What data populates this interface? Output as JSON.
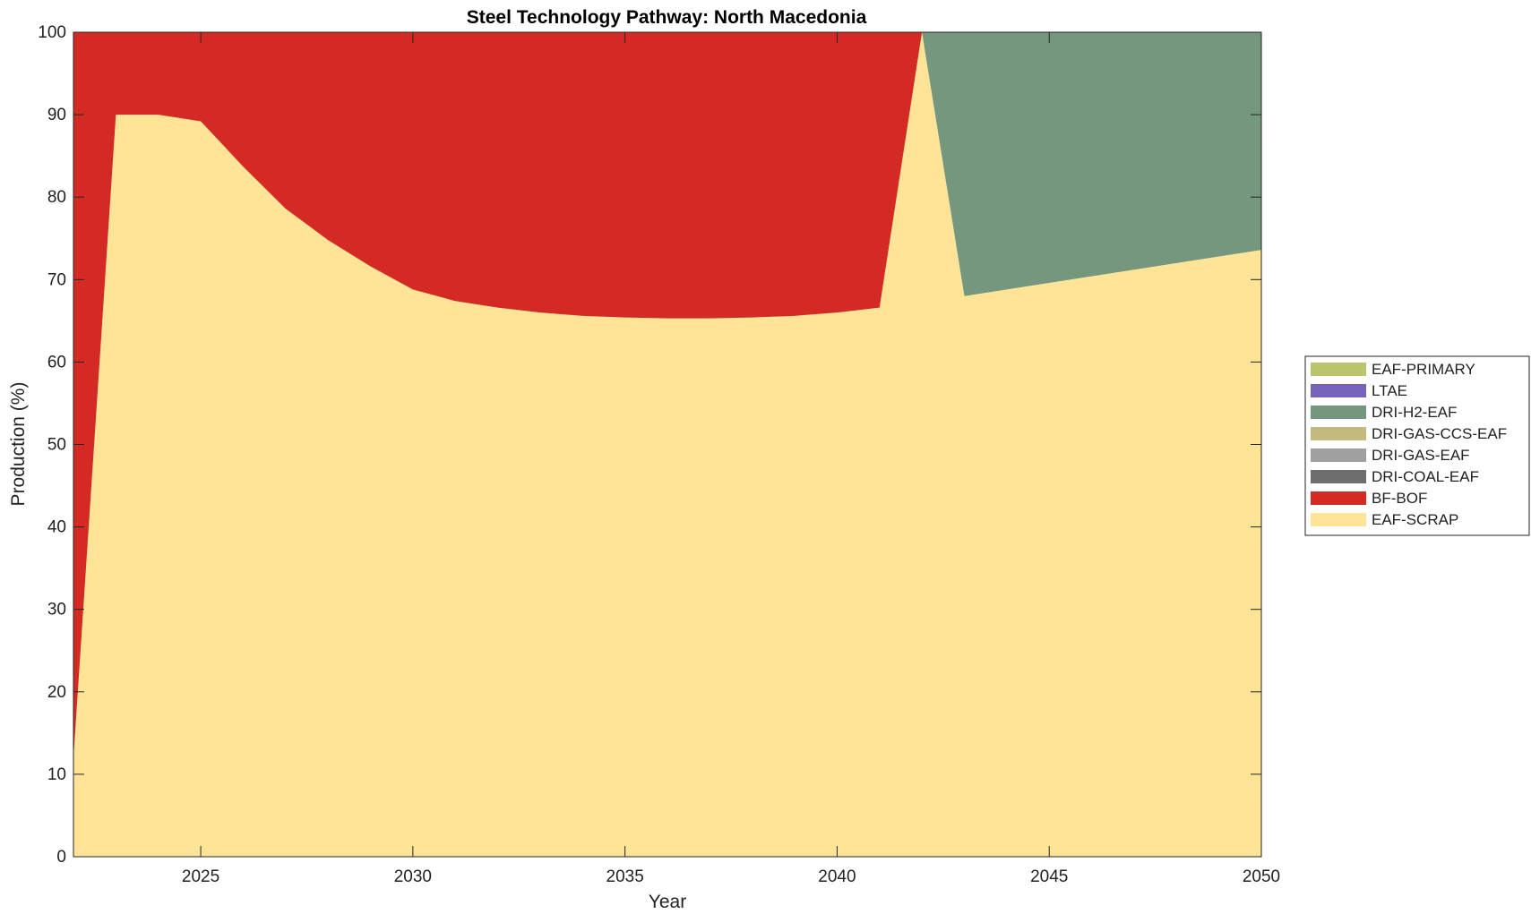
{
  "chart_data": {
    "type": "area",
    "stacked": true,
    "title": "Steel Technology Pathway: North Macedonia",
    "xlabel": "Year",
    "ylabel": "Production (%)",
    "xlim": [
      2022,
      2050
    ],
    "ylim": [
      0,
      100
    ],
    "xticks": [
      2025,
      2030,
      2035,
      2040,
      2045,
      2050
    ],
    "yticks": [
      0,
      10,
      20,
      30,
      40,
      50,
      60,
      70,
      80,
      90,
      100
    ],
    "grid": false,
    "legend_position": "right",
    "x": [
      2022,
      2023,
      2024,
      2025,
      2026,
      2027,
      2028,
      2029,
      2030,
      2031,
      2032,
      2033,
      2034,
      2035,
      2036,
      2037,
      2038,
      2039,
      2040,
      2041,
      2042,
      2043,
      2044,
      2045,
      2046,
      2047,
      2048,
      2049,
      2050
    ],
    "series": [
      {
        "name": "EAF-SCRAP",
        "color": "#FEE496",
        "values": [
          12,
          90,
          90,
          89.2,
          83.7,
          78.6,
          74.8,
          71.6,
          68.8,
          67.4,
          66.6,
          66.0,
          65.6,
          65.4,
          65.3,
          65.3,
          65.4,
          65.6,
          66.0,
          66.6,
          100,
          68.0,
          68.8,
          69.6,
          70.4,
          71.2,
          72.0,
          72.8,
          73.6
        ]
      },
      {
        "name": "BF-BOF",
        "color": "#D42A24",
        "values": [
          88,
          10,
          10,
          10.8,
          16.3,
          21.4,
          25.2,
          28.4,
          31.2,
          32.6,
          33.4,
          34.0,
          34.4,
          34.6,
          34.7,
          34.7,
          34.6,
          34.4,
          34.0,
          33.4,
          0,
          0,
          0,
          0,
          0,
          0,
          0,
          0,
          0
        ]
      },
      {
        "name": "DRI-COAL-EAF",
        "color": "#6E6E6E",
        "values": [
          0,
          0,
          0,
          0,
          0,
          0,
          0,
          0,
          0,
          0,
          0,
          0,
          0,
          0,
          0,
          0,
          0,
          0,
          0,
          0,
          0,
          0,
          0,
          0,
          0,
          0,
          0,
          0,
          0
        ]
      },
      {
        "name": "DRI-GAS-EAF",
        "color": "#A0A0A0",
        "values": [
          0,
          0,
          0,
          0,
          0,
          0,
          0,
          0,
          0,
          0,
          0,
          0,
          0,
          0,
          0,
          0,
          0,
          0,
          0,
          0,
          0,
          0,
          0,
          0,
          0,
          0,
          0,
          0,
          0
        ]
      },
      {
        "name": "DRI-GAS-CCS-EAF",
        "color": "#C3BB7E",
        "values": [
          0,
          0,
          0,
          0,
          0,
          0,
          0,
          0,
          0,
          0,
          0,
          0,
          0,
          0,
          0,
          0,
          0,
          0,
          0,
          0,
          0,
          0,
          0,
          0,
          0,
          0,
          0,
          0,
          0
        ]
      },
      {
        "name": "DRI-H2-EAF",
        "color": "#74977D",
        "values": [
          0,
          0,
          0,
          0,
          0,
          0,
          0,
          0,
          0,
          0,
          0,
          0,
          0,
          0,
          0,
          0,
          0,
          0,
          0,
          0,
          0,
          32.0,
          31.2,
          30.4,
          29.6,
          28.8,
          28.0,
          27.2,
          26.4
        ]
      },
      {
        "name": "LTAE",
        "color": "#7564BA",
        "values": [
          0,
          0,
          0,
          0,
          0,
          0,
          0,
          0,
          0,
          0,
          0,
          0,
          0,
          0,
          0,
          0,
          0,
          0,
          0,
          0,
          0,
          0,
          0,
          0,
          0,
          0,
          0,
          0,
          0
        ]
      },
      {
        "name": "EAF-PRIMARY",
        "color": "#BAC46C",
        "values": [
          0,
          0,
          0,
          0,
          0,
          0,
          0,
          0,
          0,
          0,
          0,
          0,
          0,
          0,
          0,
          0,
          0,
          0,
          0,
          0,
          0,
          0,
          0,
          0,
          0,
          0,
          0,
          0,
          0
        ]
      }
    ],
    "legend_order": [
      "EAF-PRIMARY",
      "LTAE",
      "DRI-H2-EAF",
      "DRI-GAS-CCS-EAF",
      "DRI-GAS-EAF",
      "DRI-COAL-EAF",
      "BF-BOF",
      "EAF-SCRAP"
    ]
  }
}
